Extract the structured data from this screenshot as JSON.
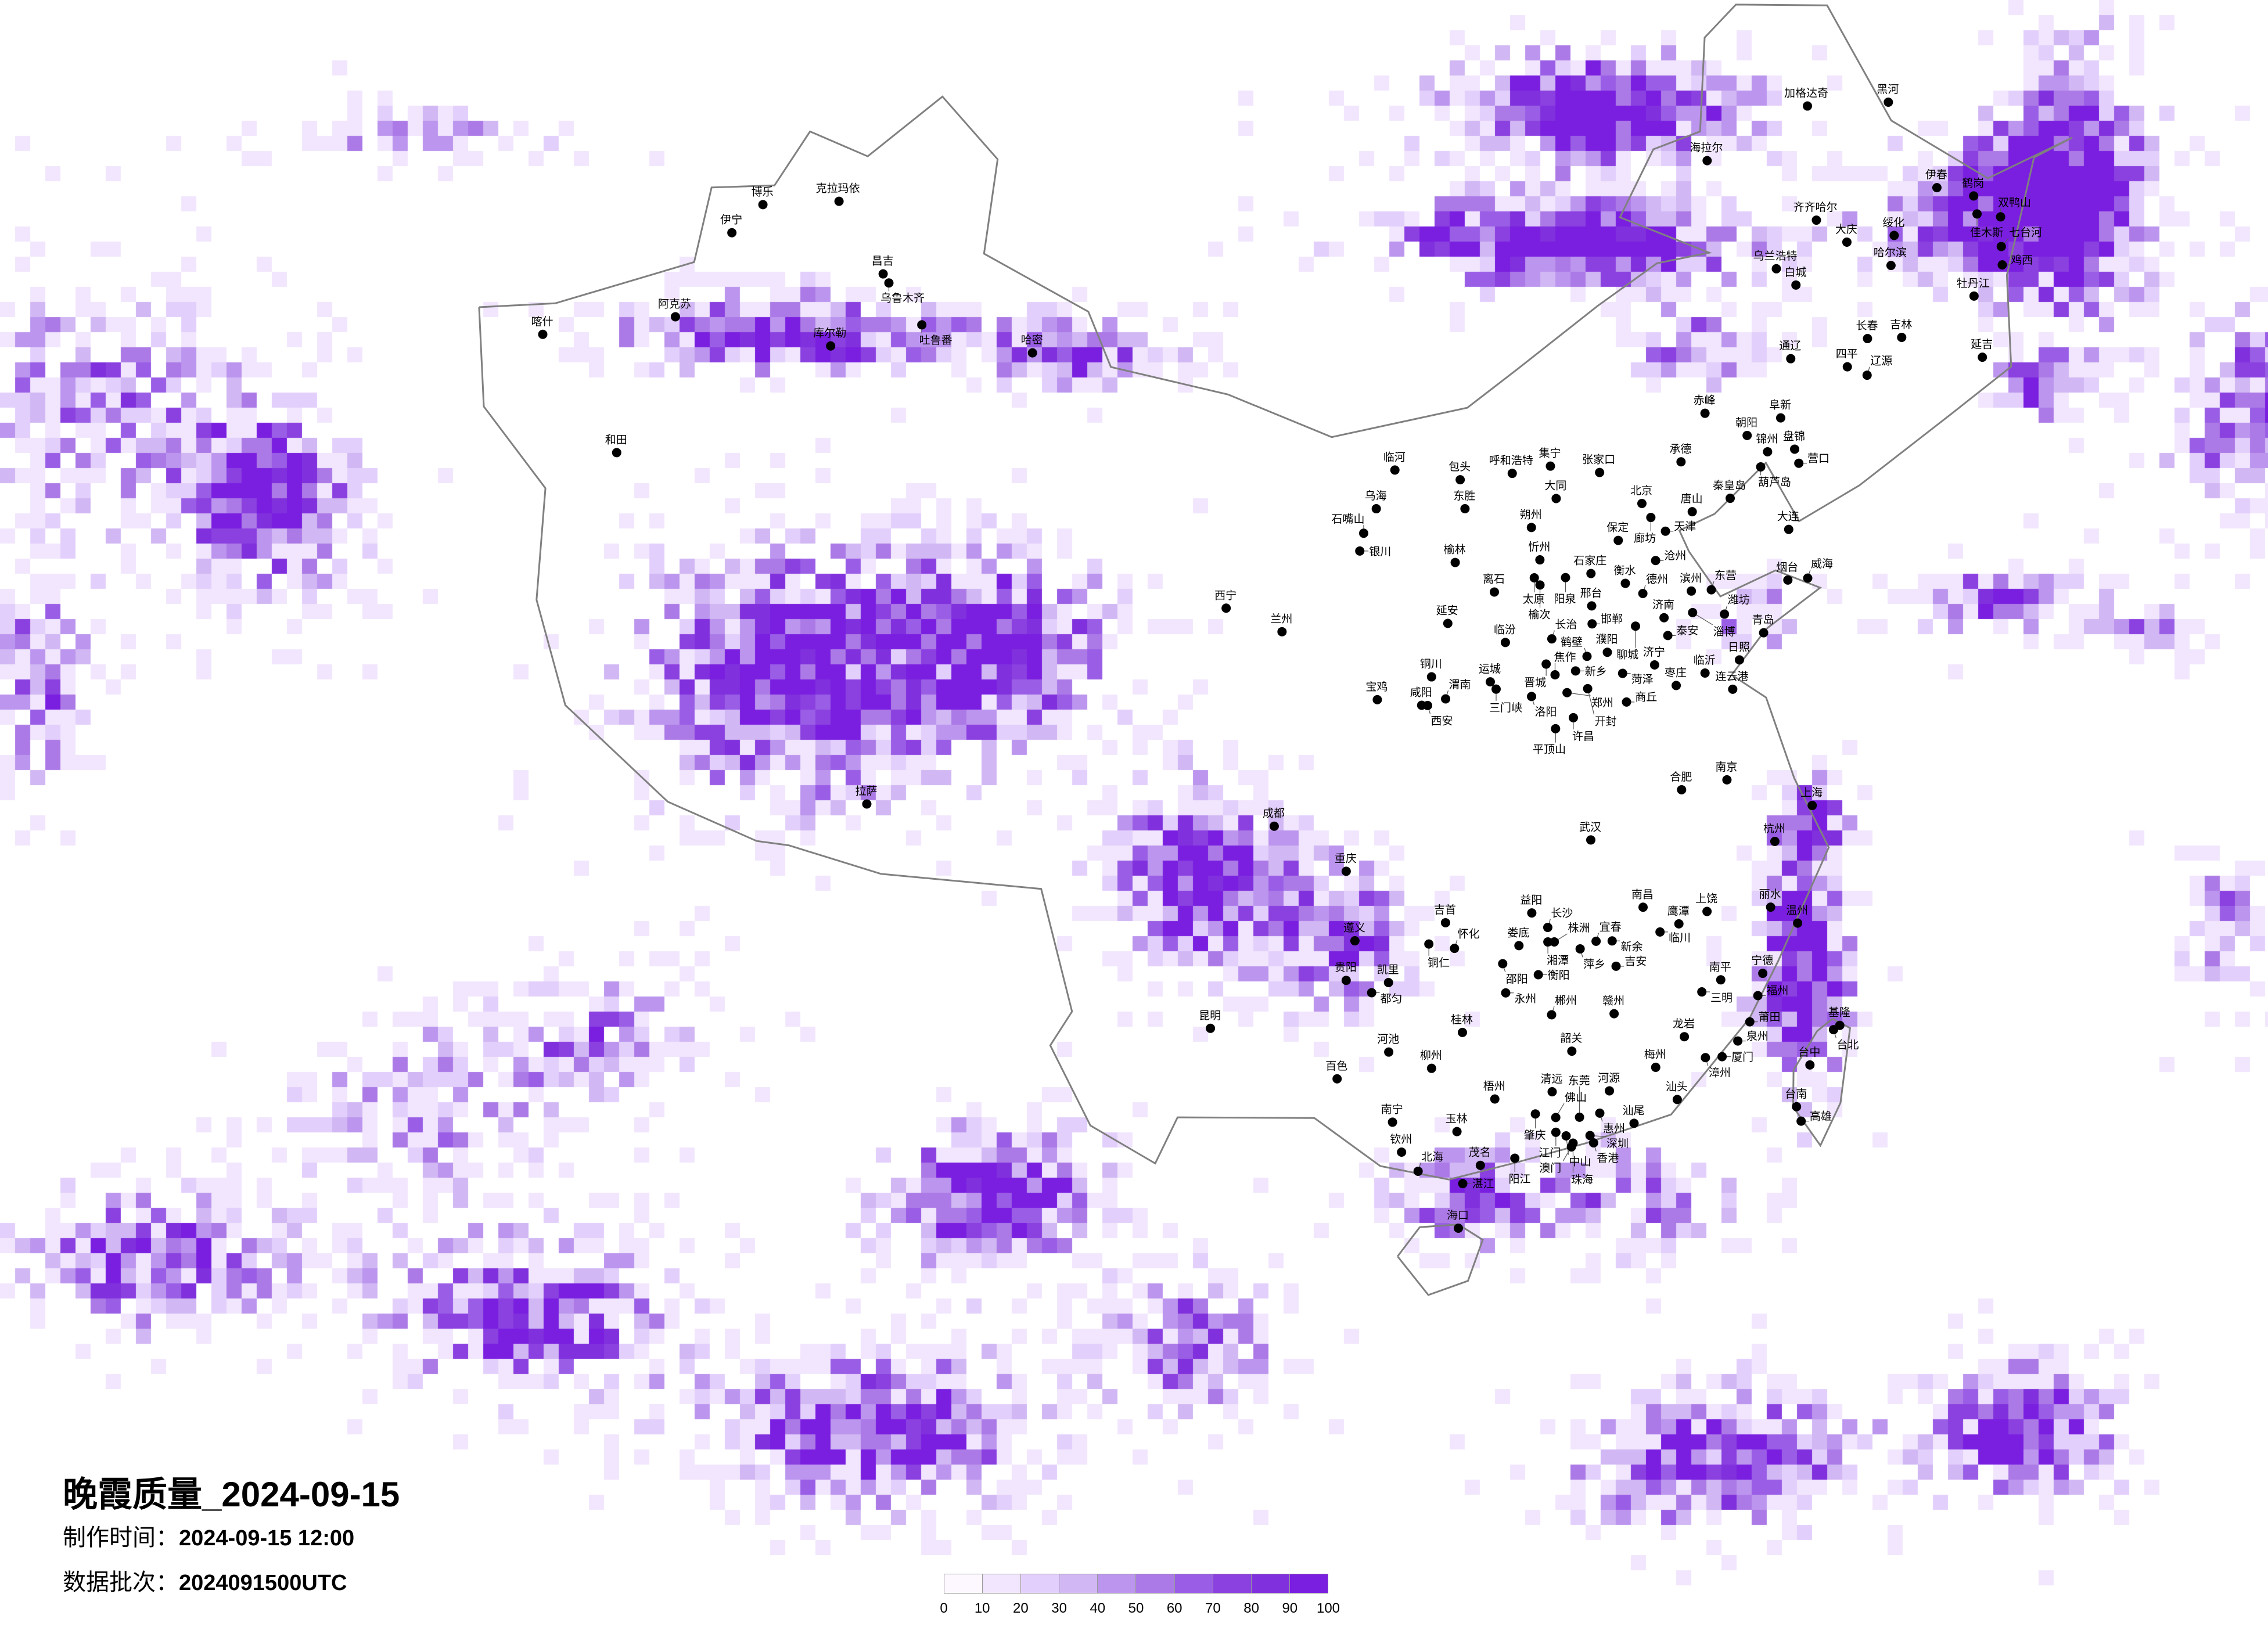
{
  "title": {
    "name": "晚霞质量",
    "date": "_2024-09-15"
  },
  "made_time": {
    "label": "制作时间：",
    "value": "2024-09-15 12:00"
  },
  "data_batch": {
    "label": "数据批次：",
    "value": "2024091500UTC"
  },
  "legend": {
    "ticks": [
      "0",
      "10",
      "20",
      "30",
      "40",
      "50",
      "60",
      "70",
      "80",
      "90",
      "100"
    ],
    "colors": [
      "#fdf7ff",
      "#f1e6fd",
      "#e3cffc",
      "#d1b7f3",
      "#bc95ee",
      "#ac7ae6",
      "#9a5ee6",
      "#8b40e0",
      "#8030dc",
      "#7a1fe0"
    ]
  },
  "map": {
    "border_color": "#808080",
    "city_dot_color": "#000000",
    "cities": [
      "克拉玛依",
      "博乐",
      "伊宁",
      "昌吉",
      "乌鲁木齐",
      "吐鲁番",
      "哈密",
      "库尔勒",
      "阿克苏",
      "和田",
      "喀什",
      "北京",
      "天津",
      "廊坊",
      "唐山",
      "保定",
      "石家庄",
      "沧州",
      "衡水",
      "邢台",
      "邯郸",
      "张家口",
      "承德",
      "赤峰",
      "朝阳",
      "阜新",
      "锦州",
      "盘锦",
      "营口",
      "葫芦岛",
      "秦皇岛",
      "大连",
      "呼和浩特",
      "集宁",
      "包头",
      "东胜",
      "临河",
      "乌海",
      "石嘴山",
      "银川",
      "大同",
      "朔州",
      "忻州",
      "太原",
      "阳泉",
      "榆次",
      "离石",
      "临汾",
      "长治",
      "晋城",
      "运城",
      "榆林",
      "延安",
      "铜川",
      "宝鸡",
      "咸阳",
      "西安",
      "渭南",
      "三门峡",
      "洛阳",
      "焦作",
      "新乡",
      "郑州",
      "开封",
      "鹤壁",
      "濮阳",
      "菏泽",
      "济宁",
      "聊城",
      "济南",
      "泰安",
      "德州",
      "滨州",
      "东营",
      "淄博",
      "潍坊",
      "烟台",
      "威海",
      "青岛",
      "日照",
      "临沂",
      "枣庄",
      "连云港",
      "商丘",
      "许昌",
      "平顶山",
      "海拉尔",
      "加格达奇",
      "黑河",
      "齐齐哈尔",
      "大庆",
      "绥化",
      "哈尔滨",
      "伊春",
      "鹤岗",
      "佳木斯",
      "双鸭山",
      "七台河",
      "鸡西",
      "牡丹江",
      "乌兰浩特",
      "白城",
      "通辽",
      "长春",
      "吉林",
      "四平",
      "辽源",
      "延吉",
      "遵义",
      "贵阳",
      "都匀",
      "凯里",
      "铜仁",
      "怀化",
      "吉首",
      "益阳",
      "长沙",
      "湘潭",
      "株洲",
      "娄底",
      "邵阳",
      "衡阳",
      "永州",
      "郴州",
      "萍乡",
      "宜春",
      "新余",
      "吉安",
      "赣州",
      "南昌",
      "鹰潭",
      "上饶",
      "临川",
      "丽水",
      "温州",
      "南平",
      "三明",
      "宁德",
      "福州",
      "莆田",
      "泉州",
      "龙岩",
      "漳州",
      "厦门",
      "梅州",
      "汕头",
      "汕尾",
      "河源",
      "韶关",
      "清远",
      "肇庆",
      "佛山",
      "东莞",
      "惠州",
      "江门",
      "中山",
      "深圳",
      "香港",
      "珠海",
      "澳门",
      "阳江",
      "茂名",
      "湛江",
      "海口",
      "桂林",
      "柳州",
      "河池",
      "百色",
      "南宁",
      "玉林",
      "梧州",
      "钦州",
      "北海",
      "台北",
      "基隆",
      "台中",
      "台南",
      "高雄",
      "成都",
      "重庆",
      "拉萨",
      "武汉",
      "上海",
      "杭州",
      "南京",
      "合肥",
      "昆明",
      "兰州",
      "西宁"
    ]
  }
}
